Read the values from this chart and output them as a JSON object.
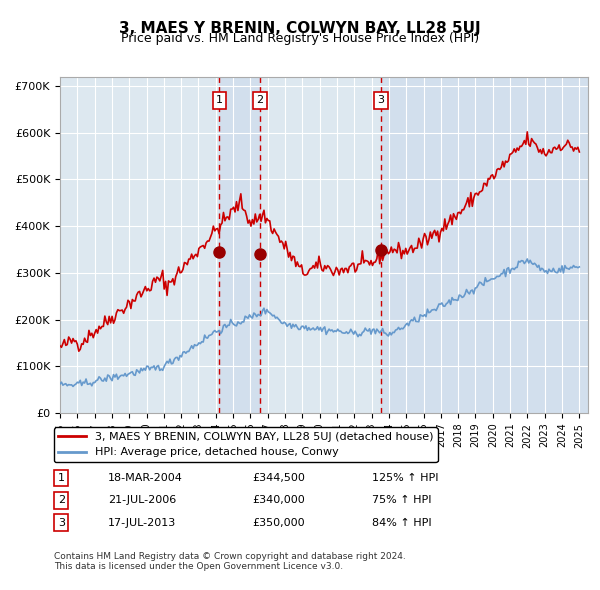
{
  "title": "3, MAES Y BRENIN, COLWYN BAY, LL28 5UJ",
  "subtitle": "Price paid vs. HM Land Registry's House Price Index (HPI)",
  "xlim": [
    1995.0,
    2025.5
  ],
  "ylim": [
    0,
    720000
  ],
  "yticks": [
    0,
    100000,
    200000,
    300000,
    400000,
    500000,
    600000,
    700000
  ],
  "ytick_labels": [
    "£0",
    "£100K",
    "£200K",
    "£300K",
    "£400K",
    "£500K",
    "£600K",
    "£700K"
  ],
  "xticks": [
    1995,
    1996,
    1997,
    1998,
    1999,
    2000,
    2001,
    2002,
    2003,
    2004,
    2005,
    2006,
    2007,
    2008,
    2009,
    2010,
    2011,
    2012,
    2013,
    2014,
    2015,
    2016,
    2017,
    2018,
    2019,
    2020,
    2021,
    2022,
    2023,
    2024,
    2025
  ],
  "red_color": "#cc0000",
  "blue_color": "#6699cc",
  "bg_color": "#dde8f0",
  "grid_color": "#ffffff",
  "transaction_color": "#990000",
  "purchase_date_1": 2004.21,
  "purchase_price_1": 344500,
  "purchase_date_2": 2006.55,
  "purchase_price_2": 340000,
  "purchase_date_3": 2013.54,
  "purchase_price_3": 350000,
  "label_1": "1",
  "label_2": "2",
  "label_3": "3",
  "legend_red_label": "3, MAES Y BRENIN, COLWYN BAY, LL28 5UJ (detached house)",
  "legend_blue_label": "HPI: Average price, detached house, Conwy",
  "table_rows": [
    {
      "num": "1",
      "date": "18-MAR-2004",
      "price": "£344,500",
      "hpi": "125% ↑ HPI"
    },
    {
      "num": "2",
      "date": "21-JUL-2006",
      "price": "£340,000",
      "hpi": "75% ↑ HPI"
    },
    {
      "num": "3",
      "date": "17-JUL-2013",
      "price": "£350,000",
      "hpi": "84% ↑ HPI"
    }
  ],
  "footnote": "Contains HM Land Registry data © Crown copyright and database right 2024.\nThis data is licensed under the Open Government Licence v3.0."
}
